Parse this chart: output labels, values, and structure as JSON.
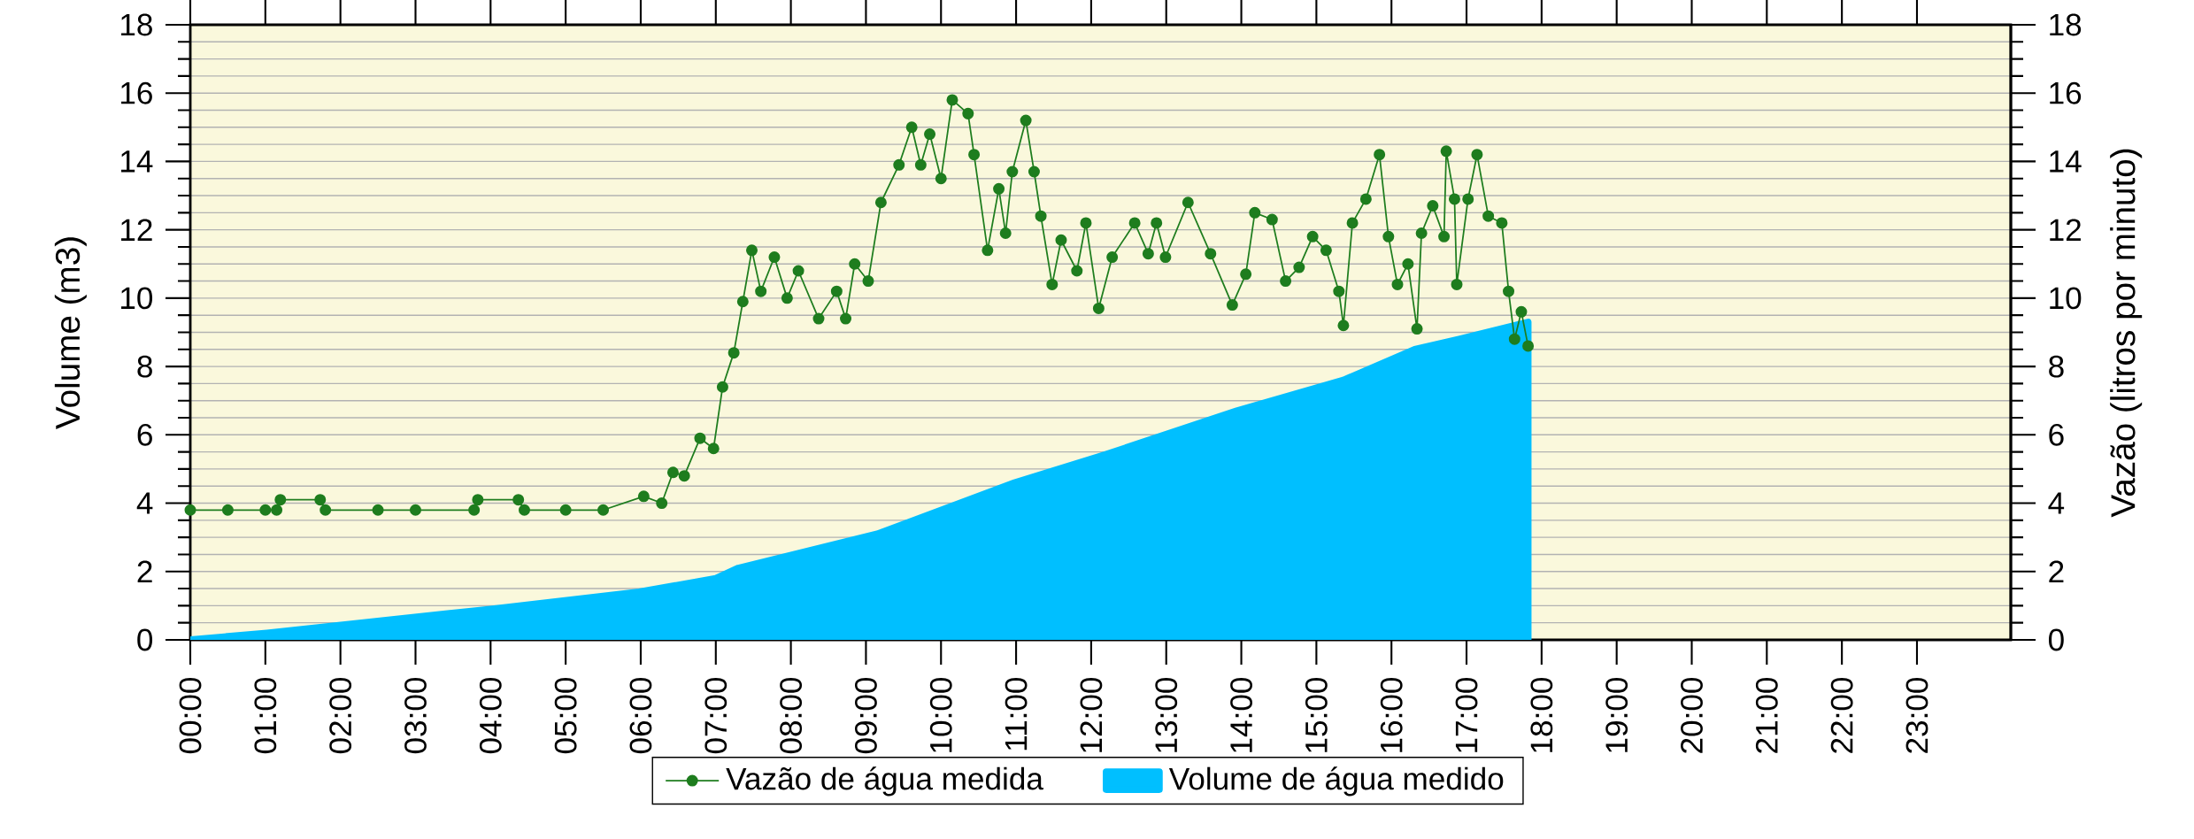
{
  "chart_data": {
    "type": "line",
    "ylabel": "Volume (m3)",
    "y2label": "Vazão (litros por minuto)",
    "xlim": [
      0,
      24.25
    ],
    "xticks": [
      {
        "value": 0,
        "label": "00:00"
      },
      {
        "value": 1,
        "label": "01:00"
      },
      {
        "value": 2,
        "label": "02:00"
      },
      {
        "value": 3,
        "label": "03:00"
      },
      {
        "value": 4,
        "label": "04:00"
      },
      {
        "value": 5,
        "label": "05:00"
      },
      {
        "value": 6,
        "label": "06:00"
      },
      {
        "value": 7,
        "label": "07:00"
      },
      {
        "value": 8,
        "label": "08:00"
      },
      {
        "value": 9,
        "label": "09:00"
      },
      {
        "value": 10,
        "label": "10:00"
      },
      {
        "value": 11,
        "label": "11:00"
      },
      {
        "value": 12,
        "label": "12:00"
      },
      {
        "value": 13,
        "label": "13:00"
      },
      {
        "value": 14,
        "label": "14:00"
      },
      {
        "value": 15,
        "label": "15:00"
      },
      {
        "value": 16,
        "label": "16:00"
      },
      {
        "value": 17,
        "label": "17:00"
      },
      {
        "value": 18,
        "label": "18:00"
      },
      {
        "value": 19,
        "label": "19:00"
      },
      {
        "value": 20,
        "label": "20:00"
      },
      {
        "value": 21,
        "label": "21:00"
      },
      {
        "value": 22,
        "label": "22:00"
      },
      {
        "value": 23,
        "label": "23:00"
      }
    ],
    "ylim": [
      0,
      18
    ],
    "yticks": [
      0,
      2,
      4,
      6,
      8,
      10,
      12,
      14,
      16,
      18
    ],
    "y2lim": [
      0,
      18
    ],
    "y2ticks": [
      0,
      2,
      4,
      6,
      8,
      10,
      12,
      14,
      16,
      18
    ],
    "grid": "y",
    "legend": "bottom",
    "series": [
      {
        "name": "Vazão de água medida",
        "axis": "y2",
        "color": "#1e7d1e",
        "marker": "circle",
        "x": [
          0,
          0.5,
          1.0,
          1.15,
          1.2,
          1.73,
          1.8,
          2.5,
          3.0,
          3.78,
          3.83,
          4.37,
          4.45,
          5.0,
          5.5,
          6.04,
          6.28,
          6.43,
          6.58,
          6.79,
          6.97,
          7.09,
          7.24,
          7.36,
          7.48,
          7.6,
          7.78,
          7.95,
          8.1,
          8.37,
          8.61,
          8.73,
          8.85,
          9.03,
          9.2,
          9.44,
          9.61,
          9.73,
          9.85,
          10.0,
          10.15,
          10.36,
          10.44,
          10.62,
          10.77,
          10.86,
          10.95,
          11.13,
          11.24,
          11.33,
          11.48,
          11.6,
          11.81,
          11.93,
          12.1,
          12.28,
          12.58,
          12.76,
          12.87,
          12.99,
          13.29,
          13.59,
          13.88,
          14.06,
          14.18,
          14.41,
          14.59,
          14.77,
          14.95,
          15.13,
          15.3,
          15.36,
          15.48,
          15.66,
          15.84,
          15.96,
          16.08,
          16.22,
          16.34,
          16.4,
          16.55,
          16.7,
          16.73,
          16.84,
          16.87,
          17.02,
          17.14,
          17.29,
          17.47,
          17.56,
          17.64,
          17.73,
          17.82
        ],
        "values": [
          3.8,
          3.8,
          3.8,
          3.8,
          4.1,
          4.1,
          3.8,
          3.8,
          3.8,
          3.8,
          4.1,
          4.1,
          3.8,
          3.8,
          3.8,
          4.2,
          4.0,
          4.9,
          4.8,
          5.9,
          5.6,
          7.4,
          8.4,
          9.9,
          11.4,
          10.2,
          11.2,
          10.0,
          10.8,
          9.4,
          10.2,
          9.4,
          11.0,
          10.5,
          12.8,
          13.9,
          15.0,
          13.9,
          14.8,
          13.5,
          15.8,
          15.4,
          14.2,
          11.4,
          13.2,
          11.9,
          13.7,
          15.2,
          13.7,
          12.4,
          10.4,
          11.7,
          10.8,
          12.2,
          9.7,
          11.2,
          12.2,
          11.3,
          12.2,
          11.2,
          12.8,
          11.3,
          9.8,
          10.7,
          12.5,
          12.3,
          10.5,
          10.9,
          11.8,
          11.4,
          10.2,
          9.2,
          12.2,
          12.9,
          14.2,
          11.8,
          10.4,
          11.0,
          9.1,
          11.9,
          12.7,
          11.8,
          14.3,
          12.9,
          10.4,
          12.9,
          14.2,
          12.4,
          12.2,
          10.2,
          8.8,
          9.6,
          8.6
        ]
      },
      {
        "name": "Volume de água medido",
        "type": "area",
        "color": "#00bfff",
        "x": [
          0,
          1.02,
          4.0,
          5.98,
          7.0,
          7.3,
          9.15,
          10.98,
          12.16,
          13.94,
          15.36,
          16.31,
          16.9,
          17.82
        ],
        "values": [
          0,
          0.2,
          0.9,
          1.4,
          1.8,
          2.1,
          3.1,
          4.6,
          5.4,
          6.7,
          7.6,
          8.5,
          8.8,
          9.3
        ]
      }
    ]
  }
}
